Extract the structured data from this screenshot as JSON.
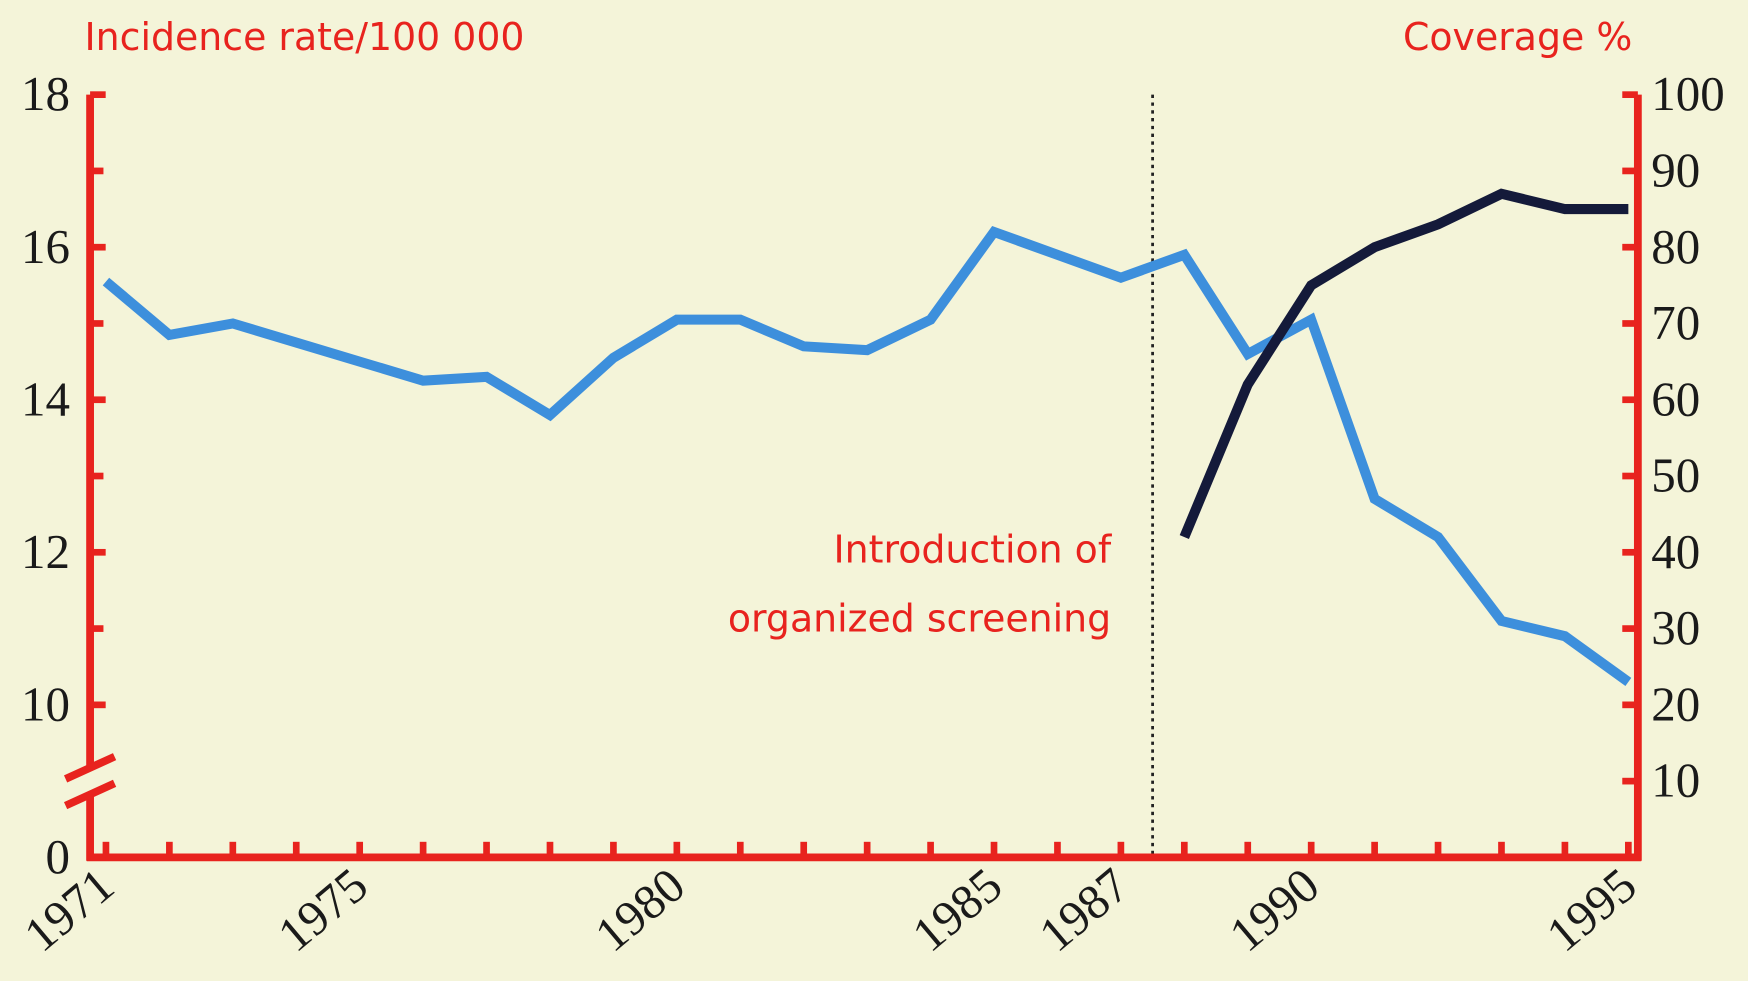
{
  "chart_data": {
    "type": "line",
    "y_label": "Incidence rate/100 000",
    "y2_label": "Coverage %",
    "annotation": [
      "Introduction of",
      "organized screening"
    ],
    "annotation_x": 1987.5,
    "x": [
      1971,
      1972,
      1973,
      1974,
      1975,
      1976,
      1977,
      1978,
      1979,
      1980,
      1981,
      1982,
      1983,
      1984,
      1985,
      1986,
      1987,
      1988,
      1989,
      1990,
      1991,
      1992,
      1993,
      1994,
      1995
    ],
    "series": [
      {
        "name": "Incidence rate",
        "color": "#3d8fdc",
        "values": [
          15.55,
          14.85,
          15.0,
          14.75,
          14.5,
          14.25,
          14.3,
          13.8,
          14.55,
          15.05,
          15.05,
          14.7,
          14.65,
          15.05,
          16.2,
          15.9,
          15.6,
          15.9,
          14.6,
          15.05,
          12.7,
          12.2,
          11.1,
          10.9,
          10.3
        ]
      },
      {
        "name": "Coverage",
        "color": "#141a3a",
        "axis": "y2",
        "values": [
          null,
          null,
          null,
          null,
          null,
          null,
          null,
          null,
          null,
          null,
          null,
          null,
          null,
          null,
          null,
          null,
          null,
          42,
          62,
          75,
          80,
          83,
          87,
          85,
          85
        ]
      }
    ],
    "xlim": [
      1970.75,
      1995.15
    ],
    "xticks": [
      1971,
      1975,
      1980,
      1985,
      1987,
      1990,
      1995
    ],
    "ylim": [
      0,
      18
    ],
    "yticks": [
      0,
      10,
      12,
      14,
      16,
      18
    ],
    "axis_break": [
      0,
      10
    ],
    "y2lim": [
      0,
      100
    ],
    "y2ticks": [
      10,
      20,
      30,
      40,
      50,
      60,
      70,
      80,
      90,
      100
    ],
    "axis_color": "#e8231e"
  }
}
